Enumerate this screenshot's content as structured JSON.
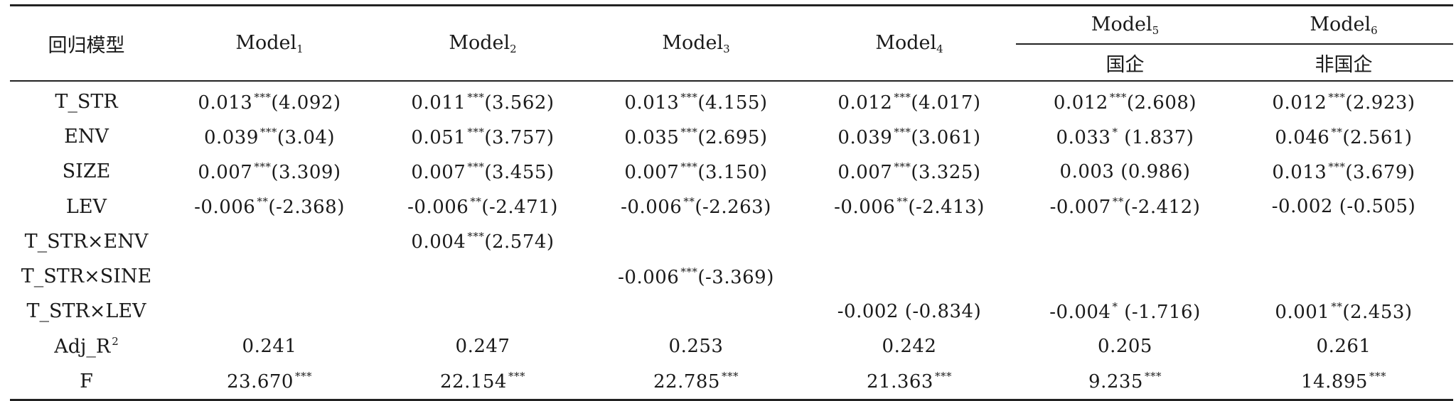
{
  "table": {
    "corner_label": "回归模型",
    "models": [
      {
        "base": "Model",
        "sub": "1",
        "group": ""
      },
      {
        "base": "Model",
        "sub": "2",
        "group": ""
      },
      {
        "base": "Model",
        "sub": "3",
        "group": ""
      },
      {
        "base": "Model",
        "sub": "4",
        "group": ""
      },
      {
        "base": "Model",
        "sub": "5",
        "group": "国企"
      },
      {
        "base": "Model",
        "sub": "6",
        "group": "非国企"
      }
    ],
    "rows": [
      {
        "var": "T_STR",
        "var_sup": "",
        "cells": [
          {
            "value": "0.013",
            "stars": "***",
            "tstat": "(4.092)"
          },
          {
            "value": "0.011",
            "stars": "***",
            "tstat": "(3.562)"
          },
          {
            "value": "0.013",
            "stars": "***",
            "tstat": "(4.155)"
          },
          {
            "value": "0.012",
            "stars": "***",
            "tstat": "(4.017)"
          },
          {
            "value": "0.012",
            "stars": "***",
            "tstat": "(2.608)"
          },
          {
            "value": "0.012",
            "stars": "***",
            "tstat": "(2.923)"
          }
        ]
      },
      {
        "var": "ENV",
        "var_sup": "",
        "cells": [
          {
            "value": "0.039",
            "stars": "***",
            "tstat": "(3.04)"
          },
          {
            "value": "0.051",
            "stars": "***",
            "tstat": "(3.757)"
          },
          {
            "value": "0.035",
            "stars": "***",
            "tstat": "(2.695)"
          },
          {
            "value": "0.039",
            "stars": "***",
            "tstat": "(3.061)"
          },
          {
            "value": "0.033",
            "stars": "*",
            "tstat": " (1.837)"
          },
          {
            "value": "0.046",
            "stars": "**",
            "tstat": "(2.561)"
          }
        ]
      },
      {
        "var": "SIZE",
        "var_sup": "",
        "cells": [
          {
            "value": "0.007",
            "stars": "***",
            "tstat": "(3.309)"
          },
          {
            "value": "0.007",
            "stars": "***",
            "tstat": "(3.455)"
          },
          {
            "value": "0.007",
            "stars": "***",
            "tstat": "(3.150)"
          },
          {
            "value": "0.007",
            "stars": "***",
            "tstat": "(3.325)"
          },
          {
            "value": "0.003",
            "stars": "",
            "tstat": " (0.986)"
          },
          {
            "value": "0.013",
            "stars": "***",
            "tstat": "(3.679)"
          }
        ]
      },
      {
        "var": "LEV",
        "var_sup": "",
        "cells": [
          {
            "value": "-0.006",
            "stars": "**",
            "tstat": "(-2.368)"
          },
          {
            "value": "-0.006",
            "stars": "**",
            "tstat": "(-2.471)"
          },
          {
            "value": "-0.006",
            "stars": "**",
            "tstat": "(-2.263)"
          },
          {
            "value": "-0.006",
            "stars": "**",
            "tstat": "(-2.413)"
          },
          {
            "value": "-0.007",
            "stars": "**",
            "tstat": "(-2.412)"
          },
          {
            "value": "-0.002",
            "stars": "",
            "tstat": " (-0.505)"
          }
        ]
      },
      {
        "var": "T_STR×ENV",
        "var_sup": "",
        "cells": [
          {
            "value": "",
            "stars": "",
            "tstat": ""
          },
          {
            "value": "0.004",
            "stars": "***",
            "tstat": "(2.574)"
          },
          {
            "value": "",
            "stars": "",
            "tstat": ""
          },
          {
            "value": "",
            "stars": "",
            "tstat": ""
          },
          {
            "value": "",
            "stars": "",
            "tstat": ""
          },
          {
            "value": "",
            "stars": "",
            "tstat": ""
          }
        ]
      },
      {
        "var": "T_STR×SINE",
        "var_sup": "",
        "cells": [
          {
            "value": "",
            "stars": "",
            "tstat": ""
          },
          {
            "value": "",
            "stars": "",
            "tstat": ""
          },
          {
            "value": "-0.006",
            "stars": "***",
            "tstat": "(-3.369)"
          },
          {
            "value": "",
            "stars": "",
            "tstat": ""
          },
          {
            "value": "",
            "stars": "",
            "tstat": ""
          },
          {
            "value": "",
            "stars": "",
            "tstat": ""
          }
        ]
      },
      {
        "var": "T_STR×LEV",
        "var_sup": "",
        "cells": [
          {
            "value": "",
            "stars": "",
            "tstat": ""
          },
          {
            "value": "",
            "stars": "",
            "tstat": ""
          },
          {
            "value": "",
            "stars": "",
            "tstat": ""
          },
          {
            "value": "-0.002",
            "stars": "",
            "tstat": " (-0.834)"
          },
          {
            "value": "-0.004",
            "stars": "*",
            "tstat": " (-1.716)"
          },
          {
            "value": "0.001",
            "stars": "**",
            "tstat": "(2.453)"
          }
        ]
      },
      {
        "var": "Adj_R",
        "var_sup": "2",
        "cells": [
          {
            "value": "0.241",
            "stars": "",
            "tstat": ""
          },
          {
            "value": "0.247",
            "stars": "",
            "tstat": ""
          },
          {
            "value": "0.253",
            "stars": "",
            "tstat": ""
          },
          {
            "value": "0.242",
            "stars": "",
            "tstat": ""
          },
          {
            "value": "0.205",
            "stars": "",
            "tstat": ""
          },
          {
            "value": "0.261",
            "stars": "",
            "tstat": ""
          }
        ]
      },
      {
        "var": "F",
        "var_sup": "",
        "cells": [
          {
            "value": "23.670",
            "stars": "***",
            "tstat": ""
          },
          {
            "value": "22.154",
            "stars": "***",
            "tstat": ""
          },
          {
            "value": "22.785",
            "stars": "***",
            "tstat": ""
          },
          {
            "value": "21.363",
            "stars": "***",
            "tstat": ""
          },
          {
            "value": "9.235",
            "stars": "***",
            "tstat": ""
          },
          {
            "value": "14.895",
            "stars": "***",
            "tstat": ""
          }
        ]
      }
    ]
  }
}
